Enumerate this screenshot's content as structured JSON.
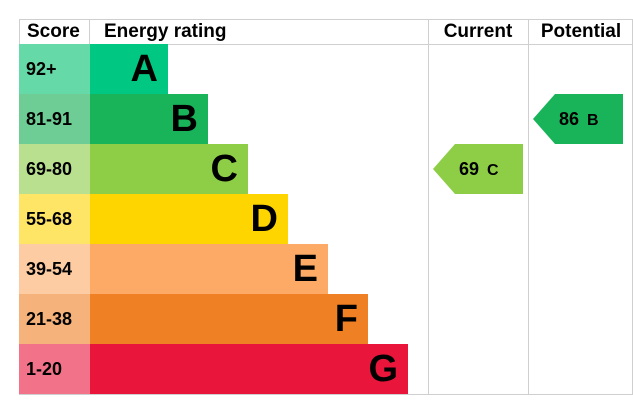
{
  "headers": {
    "score": "Score",
    "energy_rating": "Energy rating",
    "current": "Current",
    "potential": "Potential"
  },
  "bands": [
    {
      "score": "92+",
      "letter": "A",
      "color": "#00c781",
      "score_bg": "#66d9a8"
    },
    {
      "score": "81-91",
      "letter": "B",
      "color": "#19b459",
      "score_bg": "#6dcd95"
    },
    {
      "score": "69-80",
      "letter": "C",
      "color": "#8dce46",
      "score_bg": "#b9e08f"
    },
    {
      "score": "55-68",
      "letter": "D",
      "color": "#ffd500",
      "score_bg": "#ffe566"
    },
    {
      "score": "39-54",
      "letter": "E",
      "color": "#fcaa65",
      "score_bg": "#fdcca2"
    },
    {
      "score": "21-38",
      "letter": "F",
      "color": "#ef8023",
      "score_bg": "#f5b37b"
    },
    {
      "score": "1-20",
      "letter": "G",
      "color": "#e9153b",
      "score_bg": "#f27389"
    }
  ],
  "current": {
    "value": "69",
    "letter": "C",
    "color": "#8dce46"
  },
  "potential": {
    "value": "86",
    "letter": "B",
    "color": "#19b459"
  }
}
